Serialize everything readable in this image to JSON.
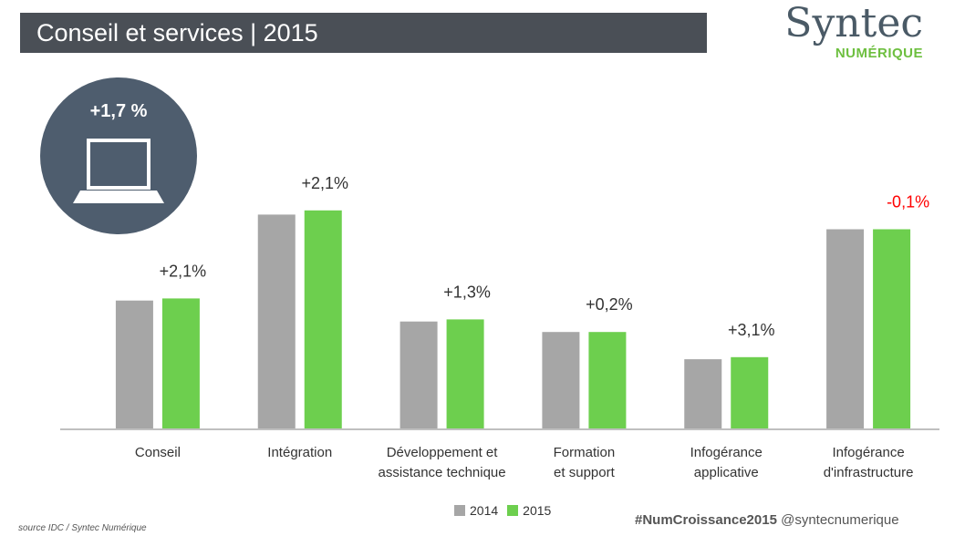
{
  "header": {
    "title": "Conseil et services | 2015"
  },
  "logo": {
    "main": "Syntec",
    "sub": "NUMÉRIQUE"
  },
  "badge": {
    "value": "+1,7 %",
    "icon": "laptop-icon"
  },
  "chart_data": {
    "type": "bar",
    "title": "",
    "xlabel": "",
    "ylabel": "",
    "ylim": [
      0,
      100
    ],
    "grid": false,
    "categories": [
      [
        "Conseil"
      ],
      [
        "Intégration"
      ],
      [
        "Développement et",
        "assistance technique"
      ],
      [
        "Formation",
        "et support"
      ],
      [
        "Infogérance",
        "applicative"
      ],
      [
        "Infogérance",
        "d'infrastructure"
      ]
    ],
    "series": [
      {
        "name": "2014",
        "color": "#a6a6a6",
        "values": [
          61,
          102,
          51,
          46,
          33,
          95
        ]
      },
      {
        "name": "2015",
        "color": "#6dcf4e",
        "values": [
          62,
          104,
          52,
          46,
          34,
          95
        ]
      }
    ],
    "annotations": [
      "+2,1%",
      "+2,1%",
      "+1,3%",
      "+0,2%",
      "+3,1%",
      "-0,1%"
    ],
    "annotation_colors": [
      "#333333",
      "#333333",
      "#333333",
      "#333333",
      "#333333",
      "#ff0000"
    ],
    "legend_position": "bottom"
  },
  "footer": {
    "source": "source IDC / Syntec Numérique",
    "hashtag": "#NumCroissance2015",
    "handle": "@syntecnumerique"
  }
}
